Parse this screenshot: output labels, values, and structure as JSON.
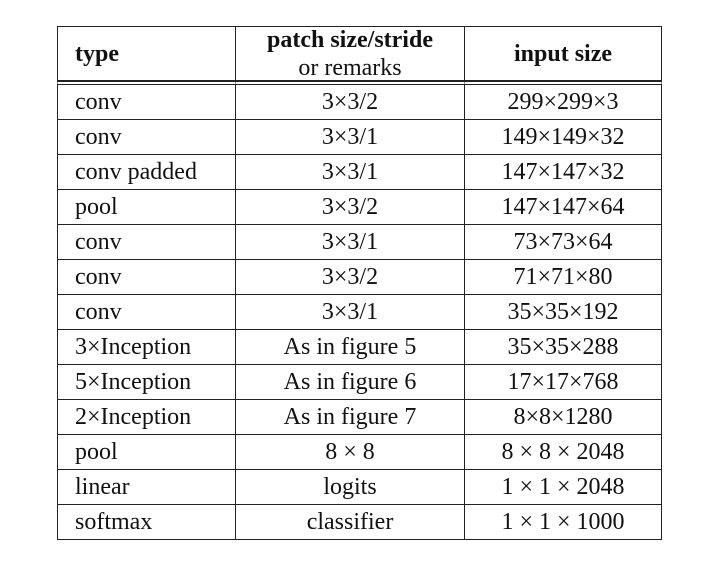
{
  "table": {
    "headers": {
      "type": "type",
      "patch_line1": "patch size/stride",
      "patch_line2": "or remarks",
      "input": "input size"
    },
    "rows": [
      {
        "type": "conv",
        "patch": "3×3/2",
        "input": "299×299×3"
      },
      {
        "type": "conv",
        "patch": "3×3/1",
        "input": "149×149×32"
      },
      {
        "type": "conv padded",
        "patch": "3×3/1",
        "input": "147×147×32"
      },
      {
        "type": "pool",
        "patch": "3×3/2",
        "input": "147×147×64"
      },
      {
        "type": "conv",
        "patch": "3×3/1",
        "input": "73×73×64"
      },
      {
        "type": "conv",
        "patch": "3×3/2",
        "input": "71×71×80"
      },
      {
        "type": "conv",
        "patch": "3×3/1",
        "input": "35×35×192"
      },
      {
        "type": "3×Inception",
        "patch": "As in figure 5",
        "input": "35×35×288"
      },
      {
        "type": "5×Inception",
        "patch": "As in figure 6",
        "input": "17×17×768"
      },
      {
        "type": "2×Inception",
        "patch": "As in figure 7",
        "input": "8×8×1280"
      },
      {
        "type": "pool",
        "patch": "8 × 8",
        "input": "8 × 8 × 2048"
      },
      {
        "type": "linear",
        "patch": "logits",
        "input": "1 × 1 × 2048"
      },
      {
        "type": "softmax",
        "patch": "classifier",
        "input": "1 × 1 × 1000"
      }
    ]
  }
}
